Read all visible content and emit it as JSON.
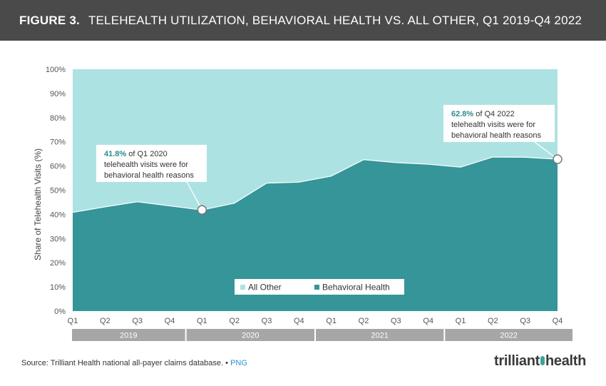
{
  "header": {
    "figure_label": "FIGURE 3.",
    "title": "TELEHEALTH UTILIZATION, BEHAVIORAL HEALTH VS. ALL OTHER, Q1 2019-Q4 2022"
  },
  "footer": {
    "source": "Source:  Trilliant Health national all-payer claims database.",
    "separator": "•",
    "png_label": "PNG"
  },
  "logo": {
    "text_a": "trilliant",
    "text_b": "health"
  },
  "colors": {
    "behavioral": "#359599",
    "other": "#ade2e3",
    "year_band": "#a6a6a6",
    "callout_value": "#2a8c8f",
    "title_bg": "#4a4a4a"
  },
  "chart_data": {
    "type": "area",
    "title": "TELEHEALTH UTILIZATION, BEHAVIORAL HEALTH VS. ALL OTHER, Q1 2019-Q4 2022",
    "ylabel": "Share of Telehealth Visits (%)",
    "xlabel": "",
    "ylim": [
      0,
      100
    ],
    "y_ticks": [
      "0%",
      "10%",
      "20%",
      "30%",
      "40%",
      "50%",
      "60%",
      "70%",
      "80%",
      "90%",
      "100%"
    ],
    "categories": [
      "Q1",
      "Q2",
      "Q3",
      "Q4",
      "Q1",
      "Q2",
      "Q3",
      "Q4",
      "Q1",
      "Q2",
      "Q3",
      "Q4",
      "Q1",
      "Q2",
      "Q3",
      "Q4"
    ],
    "years": [
      {
        "label": "2019",
        "start": 0,
        "end": 3
      },
      {
        "label": "2020",
        "start": 4,
        "end": 7
      },
      {
        "label": "2021",
        "start": 8,
        "end": 11
      },
      {
        "label": "2022",
        "start": 12,
        "end": 15
      }
    ],
    "series": [
      {
        "name": "Behavioral Health",
        "values": [
          40.8,
          43.1,
          45.2,
          43.5,
          41.8,
          44.6,
          52.9,
          53.3,
          55.8,
          62.6,
          61.4,
          60.7,
          59.5,
          63.7,
          63.6,
          62.8
        ]
      },
      {
        "name": "All Other",
        "values": [
          59.2,
          56.9,
          54.8,
          56.5,
          58.2,
          55.4,
          47.1,
          46.7,
          44.2,
          37.4,
          38.6,
          39.3,
          40.5,
          36.3,
          36.4,
          37.2
        ]
      }
    ],
    "legend": {
      "position": "bottom-center",
      "items": [
        "All Other",
        "Behavioral Health"
      ]
    },
    "annotations": [
      {
        "index": 4,
        "value_text": "41.8%",
        "line1_rest": " of Q1 2020",
        "line2": "telehealth visits were for",
        "line3": "behavioral health reasons"
      },
      {
        "index": 15,
        "value_text": "62.8%",
        "line1_rest": " of Q4 2022",
        "line2": "telehealth visits were for",
        "line3": "behavioral health reasons"
      }
    ]
  }
}
